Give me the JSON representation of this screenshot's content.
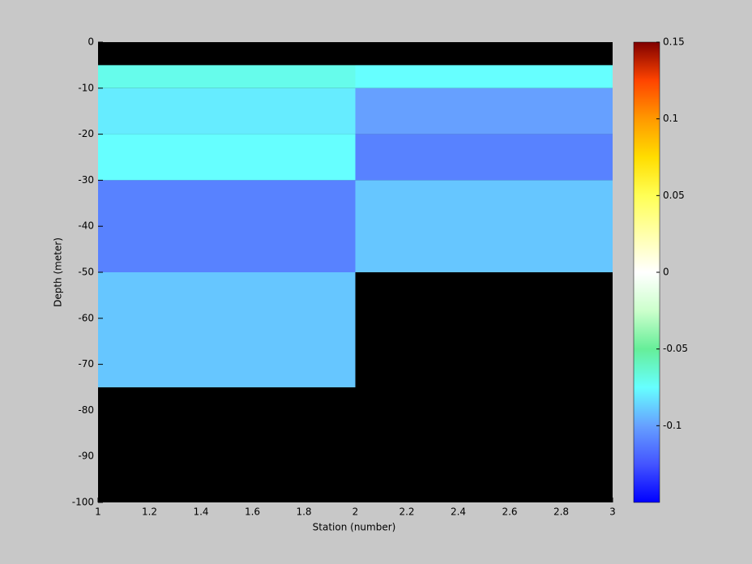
{
  "chart_data": {
    "type": "heatmap",
    "xlabel": "Station (number)",
    "ylabel": "Depth (meter)",
    "x": [
      1,
      2,
      3
    ],
    "y": [
      0,
      -5,
      -10,
      -20,
      -30,
      -50,
      -75,
      -100
    ],
    "values": [
      [
        null,
        null
      ],
      [
        -0.07,
        -0.075
      ],
      [
        -0.08,
        -0.1
      ],
      [
        -0.075,
        -0.11
      ],
      [
        -0.11,
        -0.09
      ],
      [
        -0.09,
        null
      ],
      [
        null,
        null
      ]
    ],
    "xlim": [
      1,
      3
    ],
    "xticks": [
      1,
      1.2,
      1.4,
      1.6,
      1.8,
      2,
      2.2,
      2.4,
      2.6,
      2.8,
      3
    ],
    "ylim": [
      -100,
      0
    ],
    "yticks": [
      0,
      -10,
      -20,
      -30,
      -40,
      -50,
      -60,
      -70,
      -80,
      -90,
      -100
    ],
    "clim": [
      -0.15,
      0.15
    ],
    "cticks": [
      0.15,
      0.1,
      0.05,
      0,
      -0.05,
      -0.1
    ],
    "colormap": [
      "#0000ff",
      "#4455ff",
      "#66a0ff",
      "#66ffff",
      "#66ee99",
      "#ccffcc",
      "#ffffff",
      "#ffffaa",
      "#ffff55",
      "#ffdd00",
      "#ff9900",
      "#ff4400",
      "#800000"
    ],
    "nan_color": "#000000"
  }
}
